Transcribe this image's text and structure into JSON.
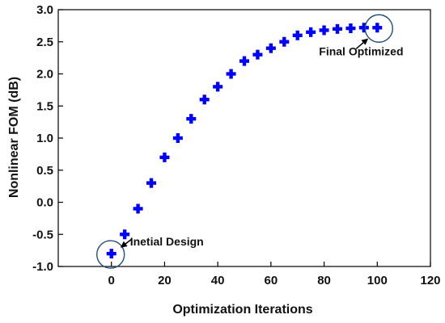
{
  "chart_data": {
    "type": "scatter",
    "title": "",
    "xlabel": "Optimization Iterations",
    "ylabel": "Nonlinear FOM (dB)",
    "xlim": [
      -20,
      120
    ],
    "ylim": [
      -1.0,
      3.0
    ],
    "xticks": [
      0,
      20,
      40,
      60,
      80,
      100,
      120
    ],
    "yticks": [
      "-1.0",
      "-0.5",
      "0.0",
      "0.5",
      "1.0",
      "1.5",
      "2.0",
      "2.5",
      "3.0"
    ],
    "grid": false,
    "marker": "plus",
    "marker_color": "#0000ff",
    "circle_color": "#1f4e79",
    "series": [
      {
        "x": [
          0,
          5,
          10,
          15,
          20,
          25,
          30,
          35,
          40,
          45,
          50,
          55,
          60,
          65,
          70,
          75,
          80,
          85,
          90,
          95,
          100
        ],
        "y": [
          -0.8,
          -0.5,
          -0.1,
          0.3,
          0.7,
          1.0,
          1.3,
          1.6,
          1.8,
          2.0,
          2.2,
          2.3,
          2.4,
          2.5,
          2.6,
          2.65,
          2.68,
          2.7,
          2.71,
          2.72,
          2.72
        ]
      }
    ],
    "annotations": [
      {
        "text": "Inetial Design",
        "x": 0,
        "y": -0.8
      },
      {
        "text": "Final Optimized",
        "x": 100,
        "y": 2.72
      }
    ]
  }
}
